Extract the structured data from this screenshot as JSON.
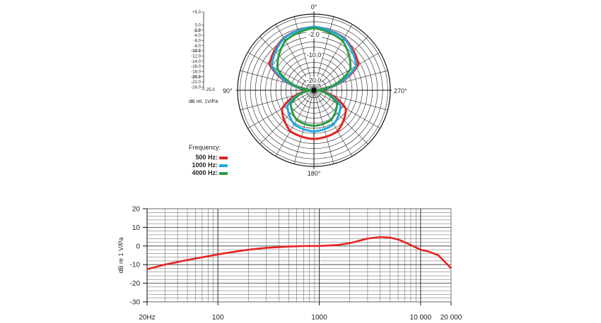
{
  "chart_data": [
    {
      "type": "polar",
      "scale_labels": [
        "+5.0",
        "0.0",
        "-2.0",
        "-4.0",
        "-6.0",
        "-8.0",
        "-10.0",
        "-12.0",
        "-14.0",
        "-16.0",
        "-18.0",
        "-20.0",
        "-22.0",
        "-24.0",
        "-25.0"
      ],
      "bold_scale_labels": [
        "-2.0",
        "-10.0",
        "-20.0"
      ],
      "scale_unit": "dB rel. 1V/Pa",
      "ring_labels": [
        "-2.0",
        "-10.0",
        "-20.0"
      ],
      "angle_labels": {
        "top": "0°",
        "left": "90°",
        "right": "270°",
        "bottom": "180°"
      },
      "rlim": [
        -25,
        5
      ],
      "grid": true,
      "legend": {
        "title": "Frequency:",
        "placement": "lower-left",
        "entries": [
          {
            "label": "500 Hz:",
            "color": "#e52421"
          },
          {
            "label": "1000 Hz:",
            "color": "#1fa9e1"
          },
          {
            "label": "4000 Hz:",
            "color": "#2e9b45"
          }
        ]
      },
      "series": [
        {
          "name": "500 Hz",
          "color": "#e52421",
          "pattern": "figure-eight",
          "points": [
            [
              0,
              0
            ],
            [
              30,
              -1.2
            ],
            [
              60,
              -4.8
            ],
            [
              90,
              -25
            ],
            [
              120,
              -10.5
            ],
            [
              150,
              -6.4
            ],
            [
              180,
              -5.8
            ]
          ]
        },
        {
          "name": "1000 Hz",
          "color": "#1fa9e1",
          "pattern": "figure-eight",
          "points": [
            [
              0,
              0
            ],
            [
              30,
              -1.4
            ],
            [
              60,
              -5.8
            ],
            [
              90,
              -25
            ],
            [
              120,
              -13
            ],
            [
              150,
              -9.5
            ],
            [
              180,
              -8.8
            ]
          ]
        },
        {
          "name": "4000 Hz",
          "color": "#2e9b45",
          "pattern": "figure-eight",
          "points": [
            [
              0,
              -0.5
            ],
            [
              30,
              -2.5
            ],
            [
              60,
              -8.5
            ],
            [
              90,
              -25
            ],
            [
              120,
              -14.5
            ],
            [
              150,
              -11.5
            ],
            [
              180,
              -11
            ]
          ]
        }
      ]
    },
    {
      "type": "line",
      "xscale": "log",
      "xlim": [
        20,
        20000
      ],
      "ylim": [
        -30,
        20
      ],
      "ylabel": "dB re 1 V/Pa",
      "xticks": [
        {
          "value": 20,
          "label": "20Hz"
        },
        {
          "value": 100,
          "label": "100"
        },
        {
          "value": 1000,
          "label": "1000"
        },
        {
          "value": 10000,
          "label": "10 000"
        },
        {
          "value": 20000,
          "label": "20 000"
        }
      ],
      "yticks": [
        20,
        10,
        0,
        -10,
        -20,
        -30
      ],
      "grid": true,
      "series": [
        {
          "color": "#e52421",
          "x": [
            20,
            30,
            50,
            80,
            100,
            150,
            200,
            300,
            500,
            700,
            1000,
            1500,
            2000,
            3000,
            4000,
            5000,
            6000,
            7000,
            8000,
            10000,
            12000,
            15000,
            20000
          ],
          "y": [
            -12.5,
            -10,
            -7.5,
            -5.5,
            -4.5,
            -3,
            -2,
            -1,
            -0.3,
            0,
            0,
            0.5,
            1.5,
            4,
            4.8,
            4.5,
            3.5,
            2,
            0.5,
            -2,
            -3,
            -5,
            -12
          ]
        }
      ]
    }
  ]
}
